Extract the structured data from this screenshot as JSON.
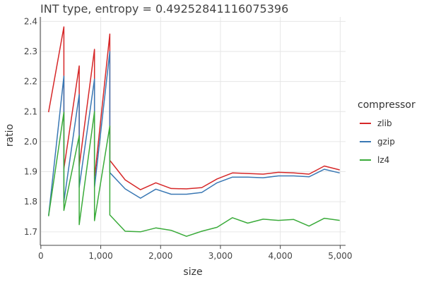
{
  "chart_data": {
    "type": "line",
    "title": "INT type, entropy = 0.49252841116075396",
    "xlabel": "size",
    "ylabel": "ratio",
    "xlim": [
      -10,
      5090
    ],
    "ylim": [
      1.655,
      2.415
    ],
    "grid": true,
    "xticks": [
      0,
      1000,
      2000,
      3000,
      4000,
      5000
    ],
    "xtick_labels": [
      "0",
      "1,000",
      "2,000",
      "3,000",
      "4,000",
      "5,000"
    ],
    "yticks": [
      1.7,
      1.8,
      1.9,
      2.0,
      2.1,
      2.2,
      2.3,
      2.4
    ],
    "ytick_labels": [
      "1.7",
      "1.8",
      "1.9",
      "2.0",
      "2.1",
      "2.2",
      "2.3",
      "2.4"
    ],
    "legend": {
      "title": "compressor",
      "position": "right"
    },
    "series": [
      {
        "name": "zlib",
        "color": "#d62728",
        "points": [
          [
            128,
            2.098
          ],
          [
            384,
            2.382
          ],
          [
            384,
            1.91
          ],
          [
            640,
            2.252
          ],
          [
            640,
            1.918
          ],
          [
            896,
            2.307
          ],
          [
            896,
            1.876
          ],
          [
            1152,
            2.358
          ],
          [
            1152,
            1.938
          ],
          [
            1408,
            1.873
          ],
          [
            1664,
            1.84
          ],
          [
            1920,
            1.863
          ],
          [
            2176,
            1.844
          ],
          [
            2432,
            1.843
          ],
          [
            2688,
            1.847
          ],
          [
            2944,
            1.876
          ],
          [
            3200,
            1.896
          ],
          [
            3456,
            1.894
          ],
          [
            3712,
            1.892
          ],
          [
            3968,
            1.898
          ],
          [
            4224,
            1.896
          ],
          [
            4480,
            1.892
          ],
          [
            4736,
            1.919
          ],
          [
            4992,
            1.906
          ]
        ]
      },
      {
        "name": "gzip",
        "color": "#3a78b4",
        "points": [
          [
            128,
            1.752
          ],
          [
            384,
            2.218
          ],
          [
            384,
            1.8
          ],
          [
            640,
            2.157
          ],
          [
            640,
            1.848
          ],
          [
            896,
            2.208
          ],
          [
            896,
            1.847
          ],
          [
            1152,
            2.3
          ],
          [
            1152,
            1.897
          ],
          [
            1408,
            1.843
          ],
          [
            1664,
            1.812
          ],
          [
            1920,
            1.842
          ],
          [
            2176,
            1.825
          ],
          [
            2432,
            1.825
          ],
          [
            2688,
            1.831
          ],
          [
            2944,
            1.863
          ],
          [
            3200,
            1.882
          ],
          [
            3456,
            1.882
          ],
          [
            3712,
            1.88
          ],
          [
            3968,
            1.886
          ],
          [
            4224,
            1.886
          ],
          [
            4480,
            1.883
          ],
          [
            4736,
            1.908
          ],
          [
            4992,
            1.896
          ]
        ]
      },
      {
        "name": "lz4",
        "color": "#3aab3a",
        "points": [
          [
            128,
            1.752
          ],
          [
            384,
            2.098
          ],
          [
            384,
            1.771
          ],
          [
            640,
            2.02
          ],
          [
            640,
            1.724
          ],
          [
            896,
            2.1
          ],
          [
            896,
            1.737
          ],
          [
            1152,
            2.052
          ],
          [
            1152,
            1.756
          ],
          [
            1408,
            1.702
          ],
          [
            1664,
            1.7
          ],
          [
            1920,
            1.713
          ],
          [
            2176,
            1.705
          ],
          [
            2432,
            1.685
          ],
          [
            2688,
            1.702
          ],
          [
            2944,
            1.715
          ],
          [
            3200,
            1.747
          ],
          [
            3456,
            1.729
          ],
          [
            3712,
            1.742
          ],
          [
            3968,
            1.738
          ],
          [
            4224,
            1.741
          ],
          [
            4480,
            1.719
          ],
          [
            4736,
            1.745
          ],
          [
            4992,
            1.738
          ]
        ]
      }
    ]
  }
}
